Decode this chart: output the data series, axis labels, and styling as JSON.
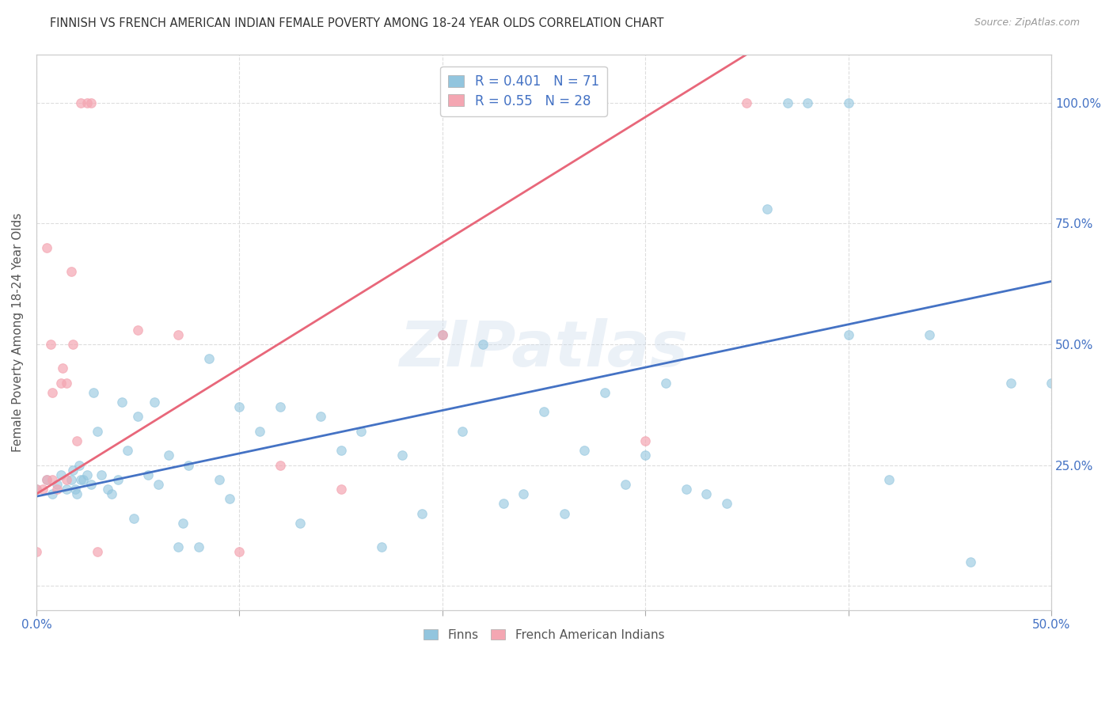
{
  "title": "FINNISH VS FRENCH AMERICAN INDIAN FEMALE POVERTY AMONG 18-24 YEAR OLDS CORRELATION CHART",
  "source": "Source: ZipAtlas.com",
  "ylabel": "Female Poverty Among 18-24 Year Olds",
  "xlim": [
    0.0,
    0.5
  ],
  "ylim": [
    -0.05,
    1.1
  ],
  "x_ticks": [
    0.0,
    0.1,
    0.2,
    0.3,
    0.4,
    0.5
  ],
  "x_tick_labels": [
    "0.0%",
    "",
    "",
    "",
    "",
    "50.0%"
  ],
  "y_ticks": [
    0.0,
    0.25,
    0.5,
    0.75,
    1.0
  ],
  "y_tick_labels": [
    "",
    "25.0%",
    "50.0%",
    "75.0%",
    "100.0%"
  ],
  "finn_color": "#92c5de",
  "french_color": "#f4a6b2",
  "finn_line_color": "#4472c4",
  "french_line_color": "#e8677a",
  "finn_R": 0.401,
  "finn_N": 71,
  "french_R": 0.55,
  "french_N": 28,
  "watermark": "ZIPatlas",
  "finn_line_x0": 0.0,
  "finn_line_y0": 0.185,
  "finn_line_x1": 0.5,
  "finn_line_y1": 0.63,
  "french_line_x0": 0.0,
  "french_line_y0": 0.19,
  "french_line_x1": 0.35,
  "french_line_y1": 1.1,
  "finn_x": [
    0.0,
    0.005,
    0.008,
    0.01,
    0.012,
    0.015,
    0.017,
    0.018,
    0.019,
    0.02,
    0.021,
    0.022,
    0.023,
    0.025,
    0.027,
    0.028,
    0.03,
    0.032,
    0.035,
    0.037,
    0.04,
    0.042,
    0.045,
    0.048,
    0.05,
    0.055,
    0.058,
    0.06,
    0.065,
    0.07,
    0.072,
    0.075,
    0.08,
    0.085,
    0.09,
    0.095,
    0.1,
    0.11,
    0.12,
    0.13,
    0.14,
    0.15,
    0.16,
    0.17,
    0.18,
    0.19,
    0.2,
    0.21,
    0.22,
    0.23,
    0.24,
    0.25,
    0.26,
    0.27,
    0.28,
    0.29,
    0.3,
    0.31,
    0.32,
    0.33,
    0.34,
    0.36,
    0.37,
    0.38,
    0.4,
    0.4,
    0.42,
    0.44,
    0.46,
    0.48,
    0.5
  ],
  "finn_y": [
    0.2,
    0.22,
    0.19,
    0.21,
    0.23,
    0.2,
    0.22,
    0.24,
    0.2,
    0.19,
    0.25,
    0.22,
    0.22,
    0.23,
    0.21,
    0.4,
    0.32,
    0.23,
    0.2,
    0.19,
    0.22,
    0.38,
    0.28,
    0.14,
    0.35,
    0.23,
    0.38,
    0.21,
    0.27,
    0.08,
    0.13,
    0.25,
    0.08,
    0.47,
    0.22,
    0.18,
    0.37,
    0.32,
    0.37,
    0.13,
    0.35,
    0.28,
    0.32,
    0.08,
    0.27,
    0.15,
    0.52,
    0.32,
    0.5,
    0.17,
    0.19,
    0.36,
    0.15,
    0.28,
    0.4,
    0.21,
    0.27,
    0.42,
    0.2,
    0.19,
    0.17,
    0.78,
    1.0,
    1.0,
    0.52,
    1.0,
    0.22,
    0.52,
    0.05,
    0.42,
    0.42
  ],
  "french_x": [
    0.0,
    0.0,
    0.003,
    0.005,
    0.005,
    0.007,
    0.008,
    0.008,
    0.01,
    0.012,
    0.013,
    0.015,
    0.015,
    0.017,
    0.018,
    0.02,
    0.022,
    0.025,
    0.027,
    0.03,
    0.05,
    0.07,
    0.1,
    0.12,
    0.15,
    0.2,
    0.3,
    0.35
  ],
  "french_y": [
    0.2,
    0.07,
    0.2,
    0.7,
    0.22,
    0.5,
    0.4,
    0.22,
    0.2,
    0.42,
    0.45,
    0.22,
    0.42,
    0.65,
    0.5,
    0.3,
    1.0,
    1.0,
    1.0,
    0.07,
    0.53,
    0.52,
    0.07,
    0.25,
    0.2,
    0.52,
    0.3,
    1.0
  ]
}
